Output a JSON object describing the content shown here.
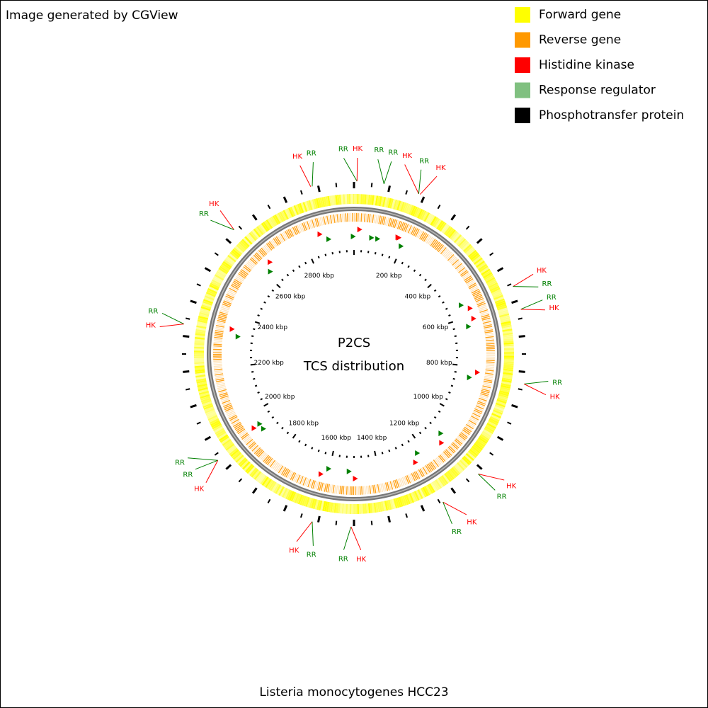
{
  "credit": "Image generated by CGView",
  "legend": [
    {
      "label": "Forward gene",
      "color": "#ffff00"
    },
    {
      "label": "Reverse gene",
      "color": "#ff9900"
    },
    {
      "label": "Histidine kinase",
      "color": "#ff0000"
    },
    {
      "label": "Response regulator",
      "color": "#80c080"
    },
    {
      "label": "Phosphotransfer protein",
      "color": "#000000"
    }
  ],
  "center": [
    "P2CS",
    "TCS distribution"
  ],
  "scale_labels": [
    "200 kbp",
    "400 kbp",
    "600 kbp",
    "800 kbp",
    "1000 kbp",
    "1200 kbp",
    "1400 kbp",
    "1600 kbp",
    "1800 kbp",
    "2000 kbp",
    "2200 kbp",
    "2400 kbp",
    "2600 kbp",
    "2800 kbp"
  ],
  "features": [
    {
      "label": "HK",
      "color": "#ff0000"
    },
    {
      "label": "RR",
      "color": "#008000"
    },
    {
      "label": "RR",
      "color": "#008000"
    },
    {
      "label": "HK",
      "color": "#ff0000"
    },
    {
      "label": "RR",
      "color": "#008000"
    },
    {
      "label": "RR",
      "color": "#008000"
    },
    {
      "label": "HK",
      "color": "#ff0000"
    },
    {
      "label": "RR",
      "color": "#008000"
    },
    {
      "label": "HK",
      "color": "#ff0000"
    },
    {
      "label": "HK",
      "color": "#ff0000"
    },
    {
      "label": "RR",
      "color": "#008000"
    },
    {
      "label": "HK",
      "color": "#ff0000"
    },
    {
      "label": "RR",
      "color": "#008000"
    },
    {
      "label": "RR",
      "color": "#008000"
    },
    {
      "label": "HK",
      "color": "#ff0000"
    },
    {
      "label": "RR",
      "color": "#008000"
    },
    {
      "label": "HK",
      "color": "#ff0000"
    },
    {
      "label": "HK",
      "color": "#ff0000"
    },
    {
      "label": "RR",
      "color": "#008000"
    },
    {
      "label": "HK",
      "color": "#ff0000"
    },
    {
      "label": "RR",
      "color": "#008000"
    },
    {
      "label": "RR",
      "color": "#008000"
    },
    {
      "label": "HK",
      "color": "#ff0000"
    },
    {
      "label": "HK",
      "color": "#ff0000"
    },
    {
      "label": "RR",
      "color": "#008000"
    },
    {
      "label": "RR",
      "color": "#008000"
    },
    {
      "label": "RR",
      "color": "#008000"
    },
    {
      "label": "HK",
      "color": "#ff0000"
    },
    {
      "label": "RR",
      "color": "#008000"
    },
    {
      "label": "HK",
      "color": "#ff0000"
    }
  ],
  "footer": "Listeria monocytogenes HCC23"
}
